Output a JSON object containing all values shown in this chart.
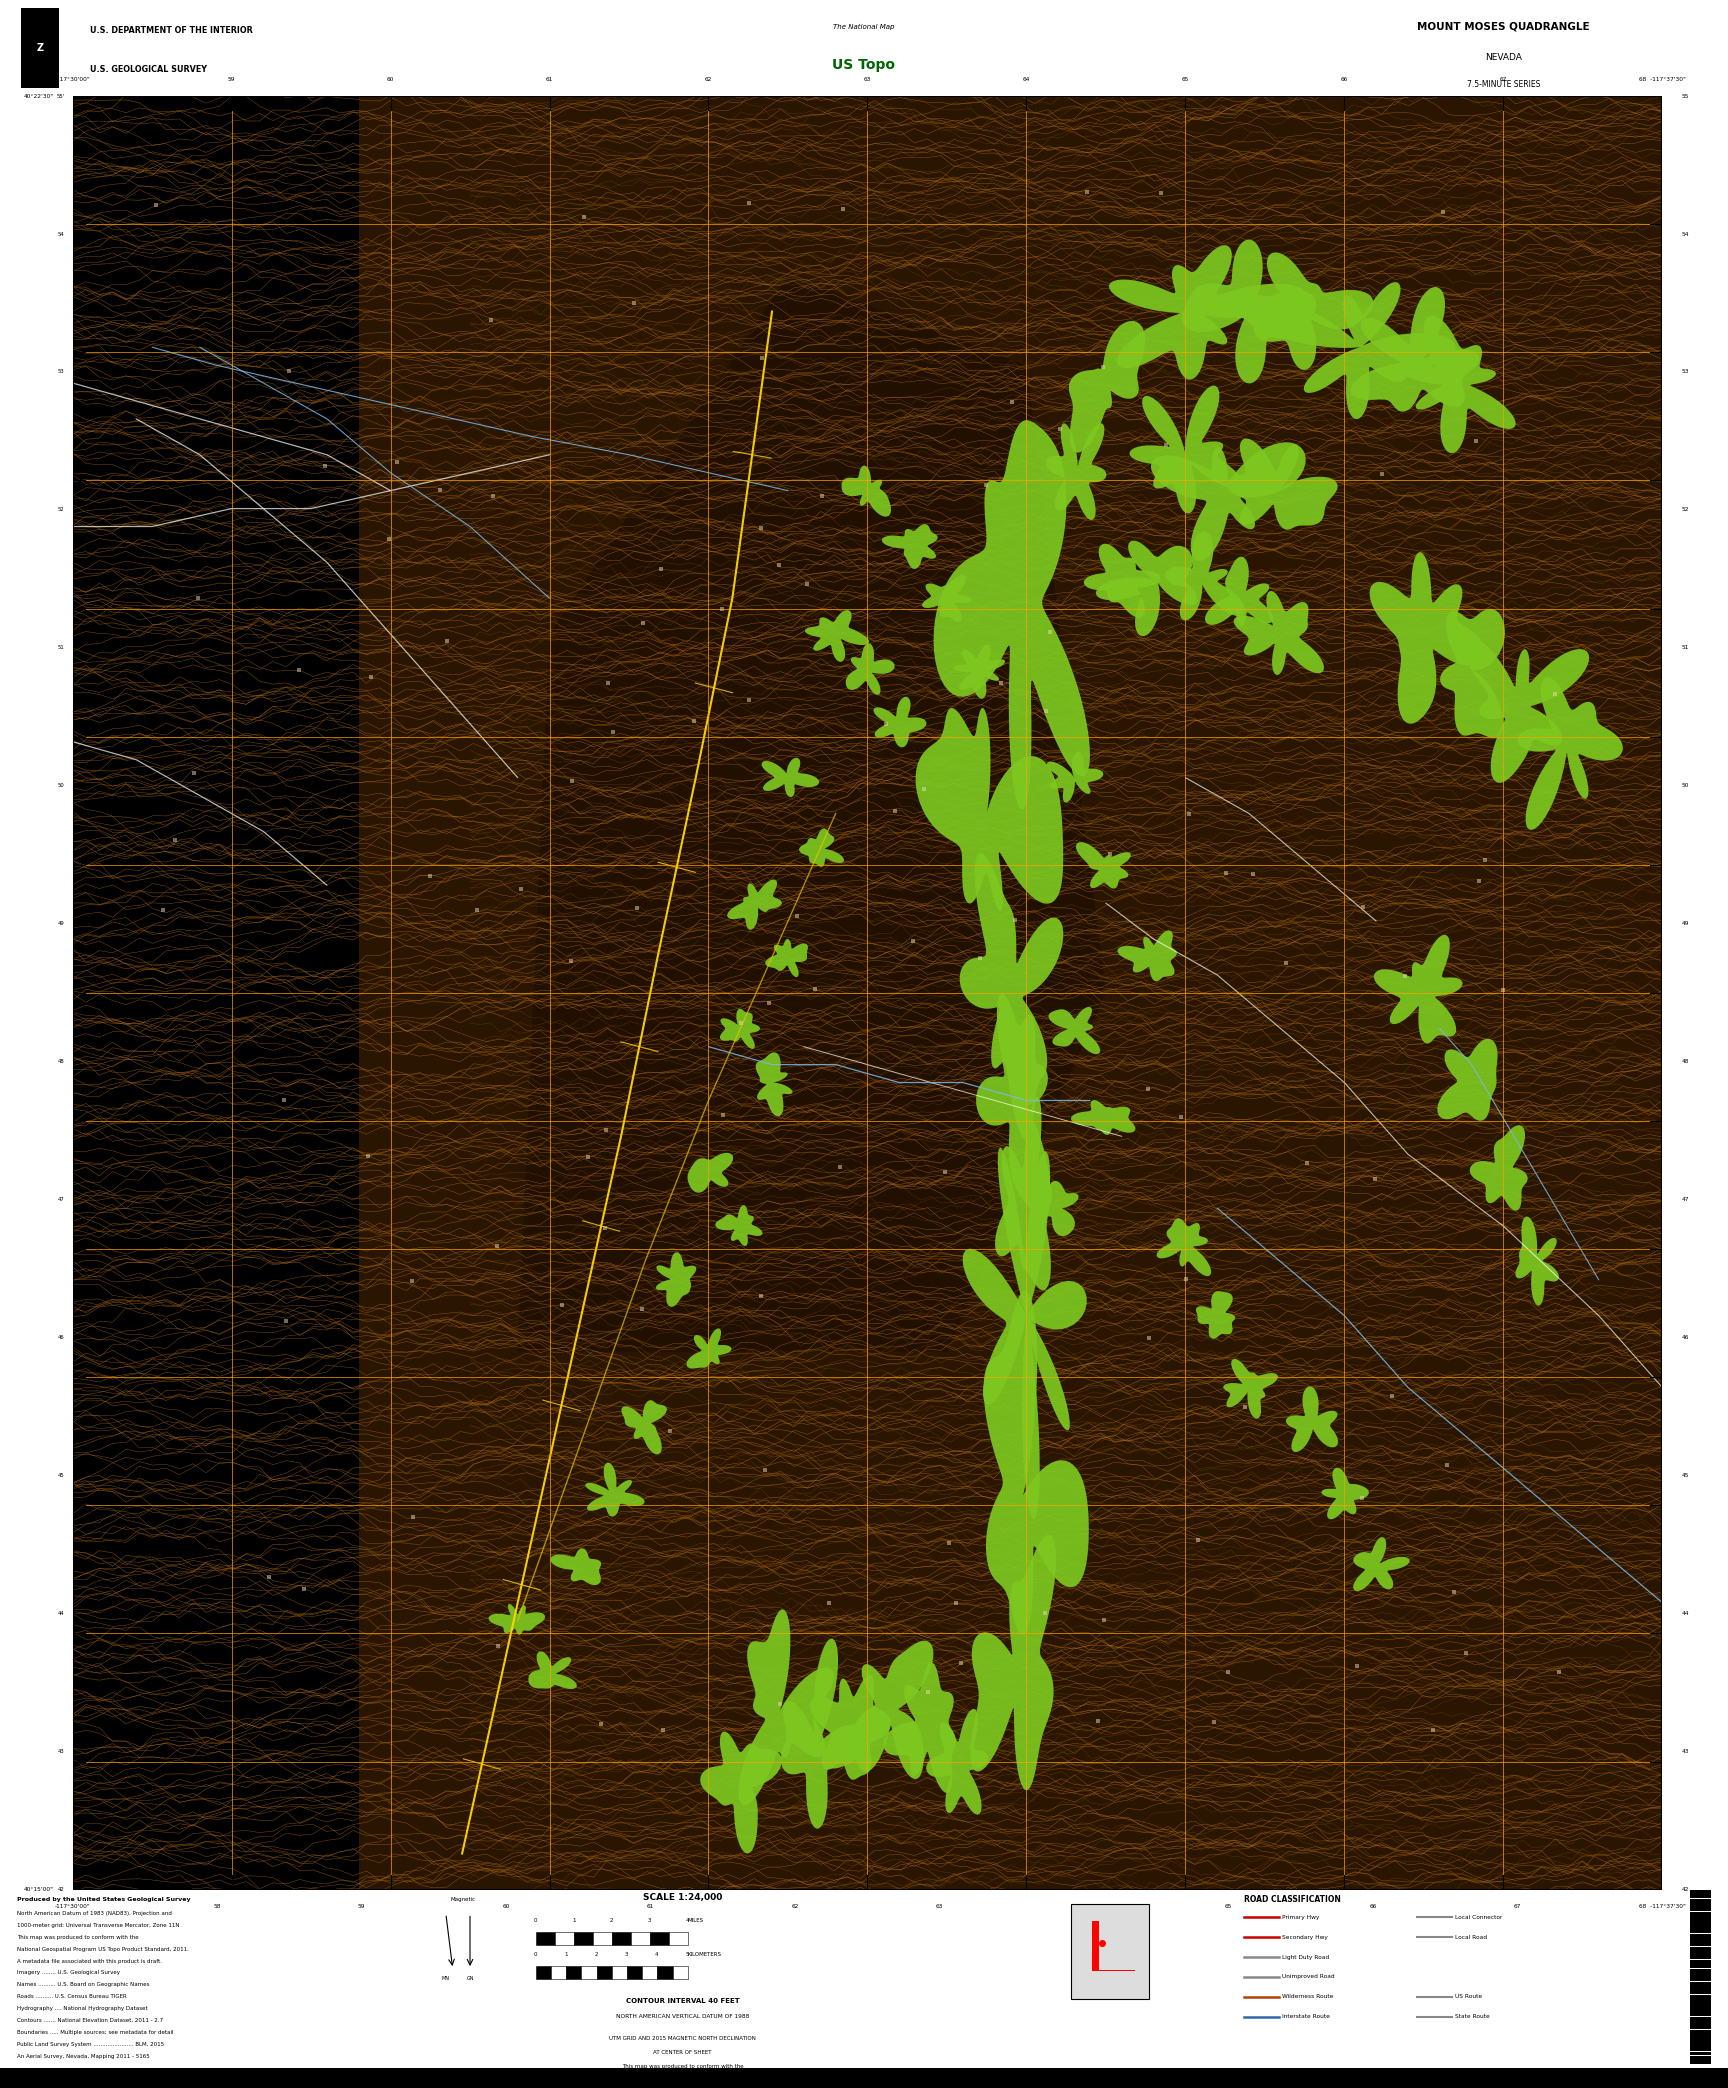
{
  "title": "MOUNT MOSES QUADRANGLE",
  "subtitle1": "NEVADA",
  "subtitle2": "7.5-MINUTE SERIES",
  "usgs_text1": "U.S. DEPARTMENT OF THE INTERIOR",
  "usgs_text2": "U.S. GEOLOGICAL SURVEY",
  "scale_text": "SCALE 1:24,000",
  "vegetation_green": "#7dc820",
  "grid_color": "#FFA500",
  "fig_width": 17.28,
  "fig_height": 20.88,
  "map_bg_dark": "#000000",
  "map_bg_brown": "#3a2000",
  "contour_color_light": "#c87820",
  "contour_color_dark": "#8B5500",
  "road_classification_title": "ROAD CLASSIFICATION"
}
